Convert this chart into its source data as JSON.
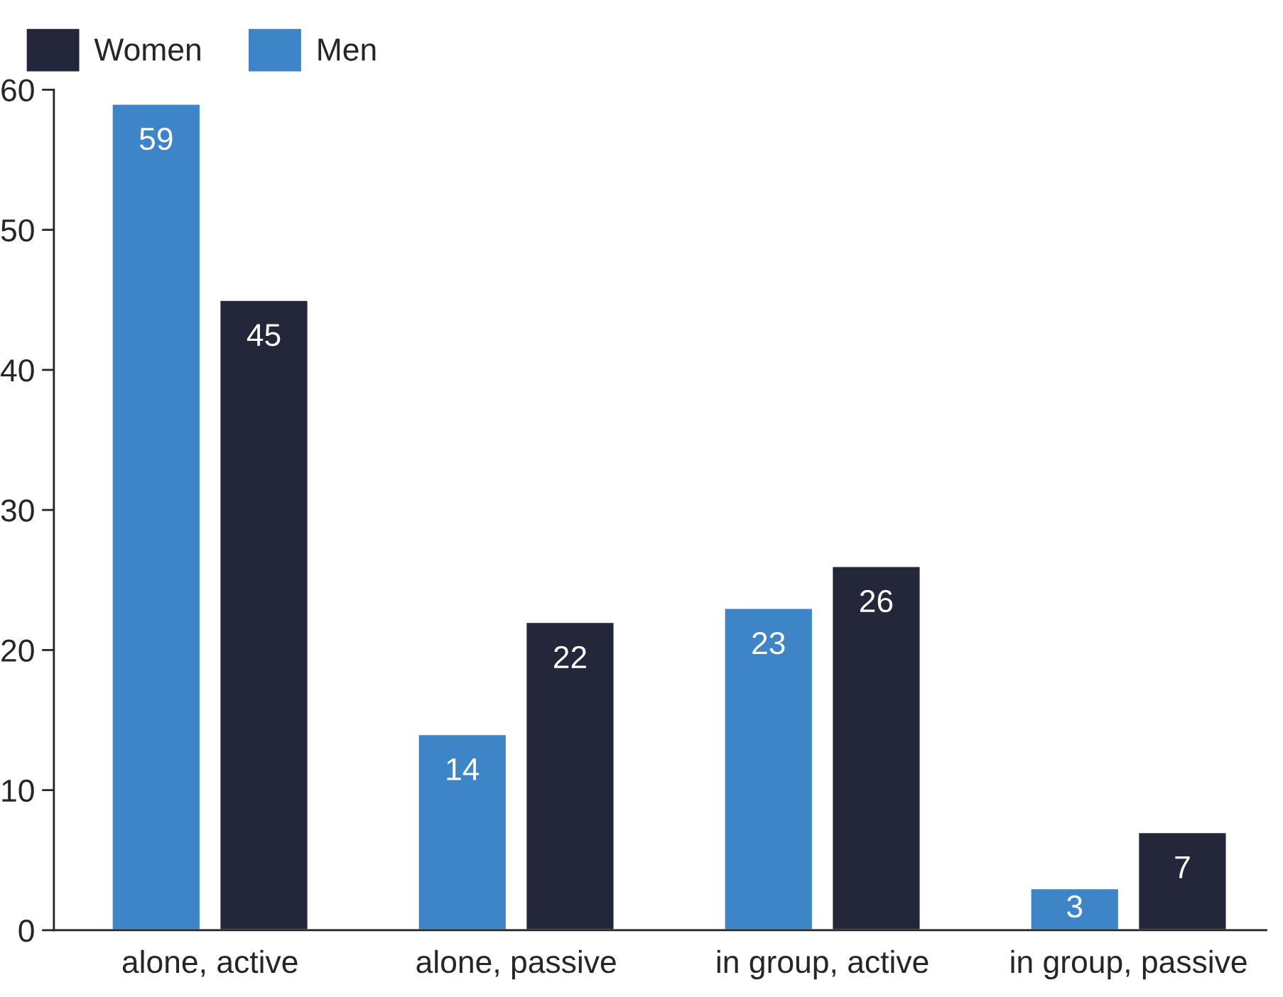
{
  "chart_data": {
    "type": "bar",
    "categories": [
      "alone, active",
      "alone, passive",
      "in group, active",
      "in group, passive"
    ],
    "series": [
      {
        "name": "Men",
        "color": "#3d85c6",
        "values": [
          59,
          14,
          23,
          3
        ]
      },
      {
        "name": "Women",
        "color": "#24263a",
        "values": [
          45,
          22,
          26,
          7
        ]
      }
    ],
    "ylim": [
      0,
      60
    ],
    "yticks": [
      0,
      10,
      20,
      30,
      40,
      50,
      60
    ],
    "data_labels": true,
    "legend": "top left",
    "grid": false
  }
}
